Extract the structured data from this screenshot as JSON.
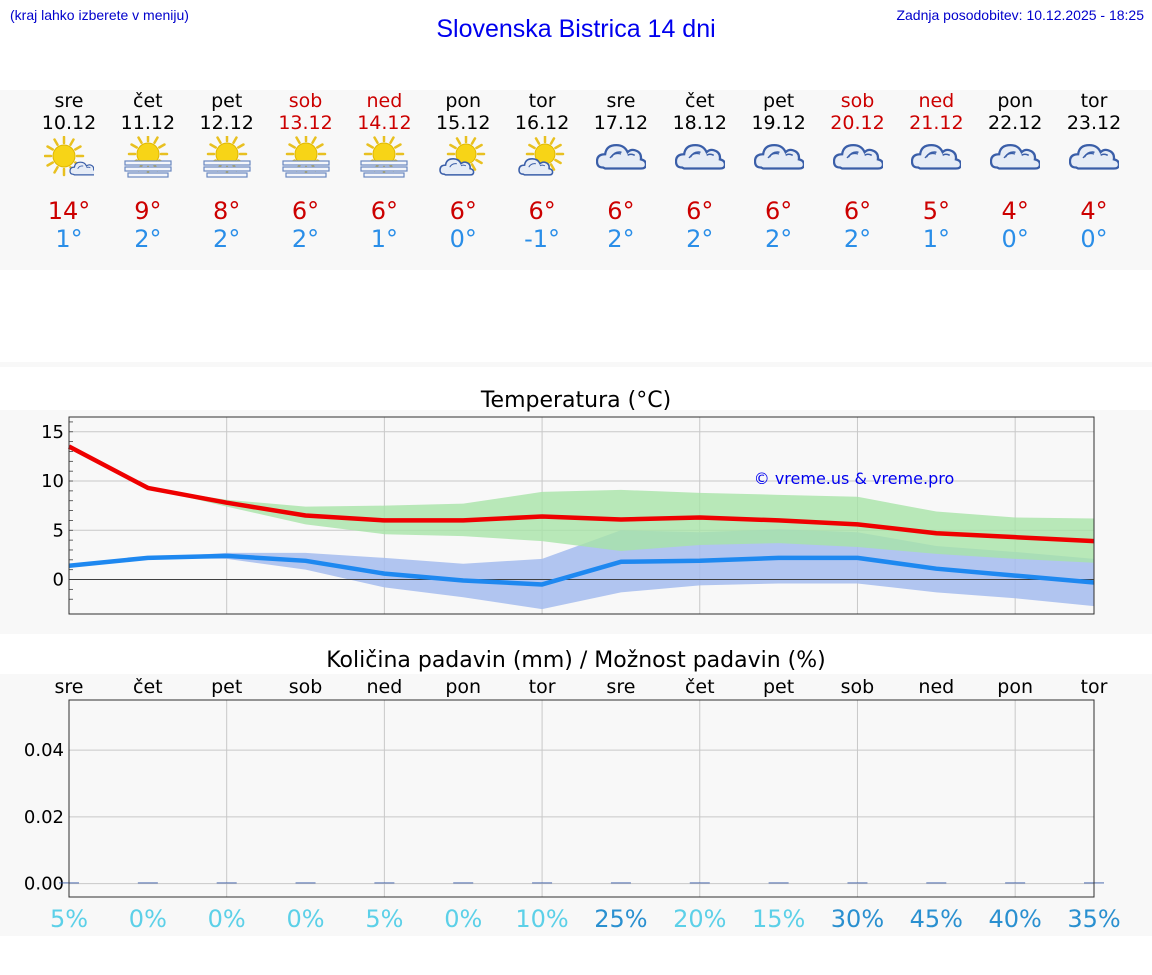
{
  "header": {
    "hint": "(kraj lahko izberete v meniju)",
    "title": "Slovenska Bistrica 14 dni",
    "updated": "Zadnja posodobitev: 10.12.2025 - 18:25"
  },
  "days": [
    {
      "name": "sre",
      "date": "10.12",
      "weekend": false,
      "icon": "sun-cloud-icon",
      "tmax": "14°",
      "tmin": "1°"
    },
    {
      "name": "čet",
      "date": "11.12",
      "weekend": false,
      "icon": "sun-fog-icon",
      "tmax": "9°",
      "tmin": "2°"
    },
    {
      "name": "pet",
      "date": "12.12",
      "weekend": false,
      "icon": "sun-fog-icon",
      "tmax": "8°",
      "tmin": "2°"
    },
    {
      "name": "sob",
      "date": "13.12",
      "weekend": true,
      "icon": "sun-fog-icon",
      "tmax": "6°",
      "tmin": "2°"
    },
    {
      "name": "ned",
      "date": "14.12",
      "weekend": true,
      "icon": "sun-fog-icon",
      "tmax": "6°",
      "tmin": "1°"
    },
    {
      "name": "pon",
      "date": "15.12",
      "weekend": false,
      "icon": "partly-cloudy-icon",
      "tmax": "6°",
      "tmin": "0°"
    },
    {
      "name": "tor",
      "date": "16.12",
      "weekend": false,
      "icon": "partly-cloudy-icon",
      "tmax": "6°",
      "tmin": "-1°"
    },
    {
      "name": "sre",
      "date": "17.12",
      "weekend": false,
      "icon": "cloudy-icon",
      "tmax": "6°",
      "tmin": "2°"
    },
    {
      "name": "čet",
      "date": "18.12",
      "weekend": false,
      "icon": "cloudy-icon",
      "tmax": "6°",
      "tmin": "2°"
    },
    {
      "name": "pet",
      "date": "19.12",
      "weekend": false,
      "icon": "cloudy-icon",
      "tmax": "6°",
      "tmin": "2°"
    },
    {
      "name": "sob",
      "date": "20.12",
      "weekend": true,
      "icon": "cloudy-icon",
      "tmax": "6°",
      "tmin": "2°"
    },
    {
      "name": "ned",
      "date": "21.12",
      "weekend": true,
      "icon": "cloudy-icon",
      "tmax": "5°",
      "tmin": "1°"
    },
    {
      "name": "pon",
      "date": "22.12",
      "weekend": false,
      "icon": "cloudy-icon",
      "tmax": "4°",
      "tmin": "0°"
    },
    {
      "name": "tor",
      "date": "23.12",
      "weekend": false,
      "icon": "cloudy-icon",
      "tmax": "4°",
      "tmin": "0°"
    }
  ],
  "colors": {
    "max_line": "#ee0000",
    "min_line": "#1e88f0",
    "max_band": "#a8e4a8",
    "min_band": "#a4bcee",
    "weekend": "#cc0000",
    "pop_light": "#5cd0e8",
    "pop_dark": "#2a90d0"
  },
  "chart_data": [
    {
      "type": "line",
      "title": "Temperatura (°C)",
      "watermark": "© vreme.us & vreme.pro",
      "xlabel": "",
      "ylabel": "",
      "ylim": [
        -3.5,
        16.5
      ],
      "yticks": [
        0,
        5,
        10,
        15
      ],
      "x": [
        0,
        1,
        2,
        3,
        4,
        5,
        6,
        7,
        8,
        9,
        10,
        11,
        12,
        13
      ],
      "series": [
        {
          "name": "max",
          "values": [
            13.5,
            9.3,
            7.8,
            6.5,
            6.0,
            6.0,
            6.4,
            6.1,
            6.3,
            6.0,
            5.6,
            4.7,
            4.3,
            3.9
          ]
        },
        {
          "name": "min",
          "values": [
            1.4,
            2.2,
            2.4,
            1.9,
            0.6,
            -0.1,
            -0.5,
            1.8,
            1.9,
            2.2,
            2.2,
            1.1,
            0.4,
            -0.3
          ]
        }
      ],
      "bands": [
        {
          "name": "max_range",
          "low": [
            13.5,
            9.3,
            7.4,
            5.6,
            4.6,
            4.4,
            3.9,
            2.9,
            3.5,
            3.7,
            3.3,
            2.6,
            2.1,
            1.7
          ],
          "high": [
            13.5,
            9.3,
            8.1,
            7.4,
            7.5,
            7.7,
            8.9,
            9.1,
            8.8,
            8.6,
            8.4,
            6.9,
            6.3,
            6.2
          ]
        },
        {
          "name": "min_range",
          "low": [
            1.4,
            2.2,
            2.1,
            1.0,
            -0.8,
            -1.8,
            -3.0,
            -1.3,
            -0.6,
            -0.4,
            -0.4,
            -1.3,
            -1.9,
            -2.7
          ],
          "high": [
            1.4,
            2.2,
            2.7,
            2.7,
            2.2,
            1.6,
            2.1,
            5.0,
            4.8,
            5.1,
            4.8,
            3.4,
            2.8,
            2.1
          ]
        }
      ]
    },
    {
      "type": "bar",
      "title": "Količina padavin (mm) / Možnost padavin (%)",
      "categories": [
        "sre",
        "čet",
        "pet",
        "sob",
        "ned",
        "pon",
        "tor",
        "sre",
        "čet",
        "pet",
        "sob",
        "ned",
        "pon",
        "tor"
      ],
      "values": [
        0,
        0,
        0,
        0,
        0,
        0,
        0,
        0,
        0,
        0,
        0,
        0,
        0,
        0
      ],
      "ylim": [
        -0.004,
        0.055
      ],
      "yticks": [
        "0.00",
        "0.02",
        "0.04"
      ],
      "ytick_values": [
        0,
        0.02,
        0.04
      ],
      "probability": [
        "5%",
        "0%",
        "0%",
        "0%",
        "5%",
        "0%",
        "10%",
        "25%",
        "20%",
        "15%",
        "30%",
        "45%",
        "40%",
        "35%"
      ],
      "probability_values": [
        5,
        0,
        0,
        0,
        5,
        0,
        10,
        25,
        20,
        15,
        30,
        45,
        40,
        35
      ]
    }
  ]
}
